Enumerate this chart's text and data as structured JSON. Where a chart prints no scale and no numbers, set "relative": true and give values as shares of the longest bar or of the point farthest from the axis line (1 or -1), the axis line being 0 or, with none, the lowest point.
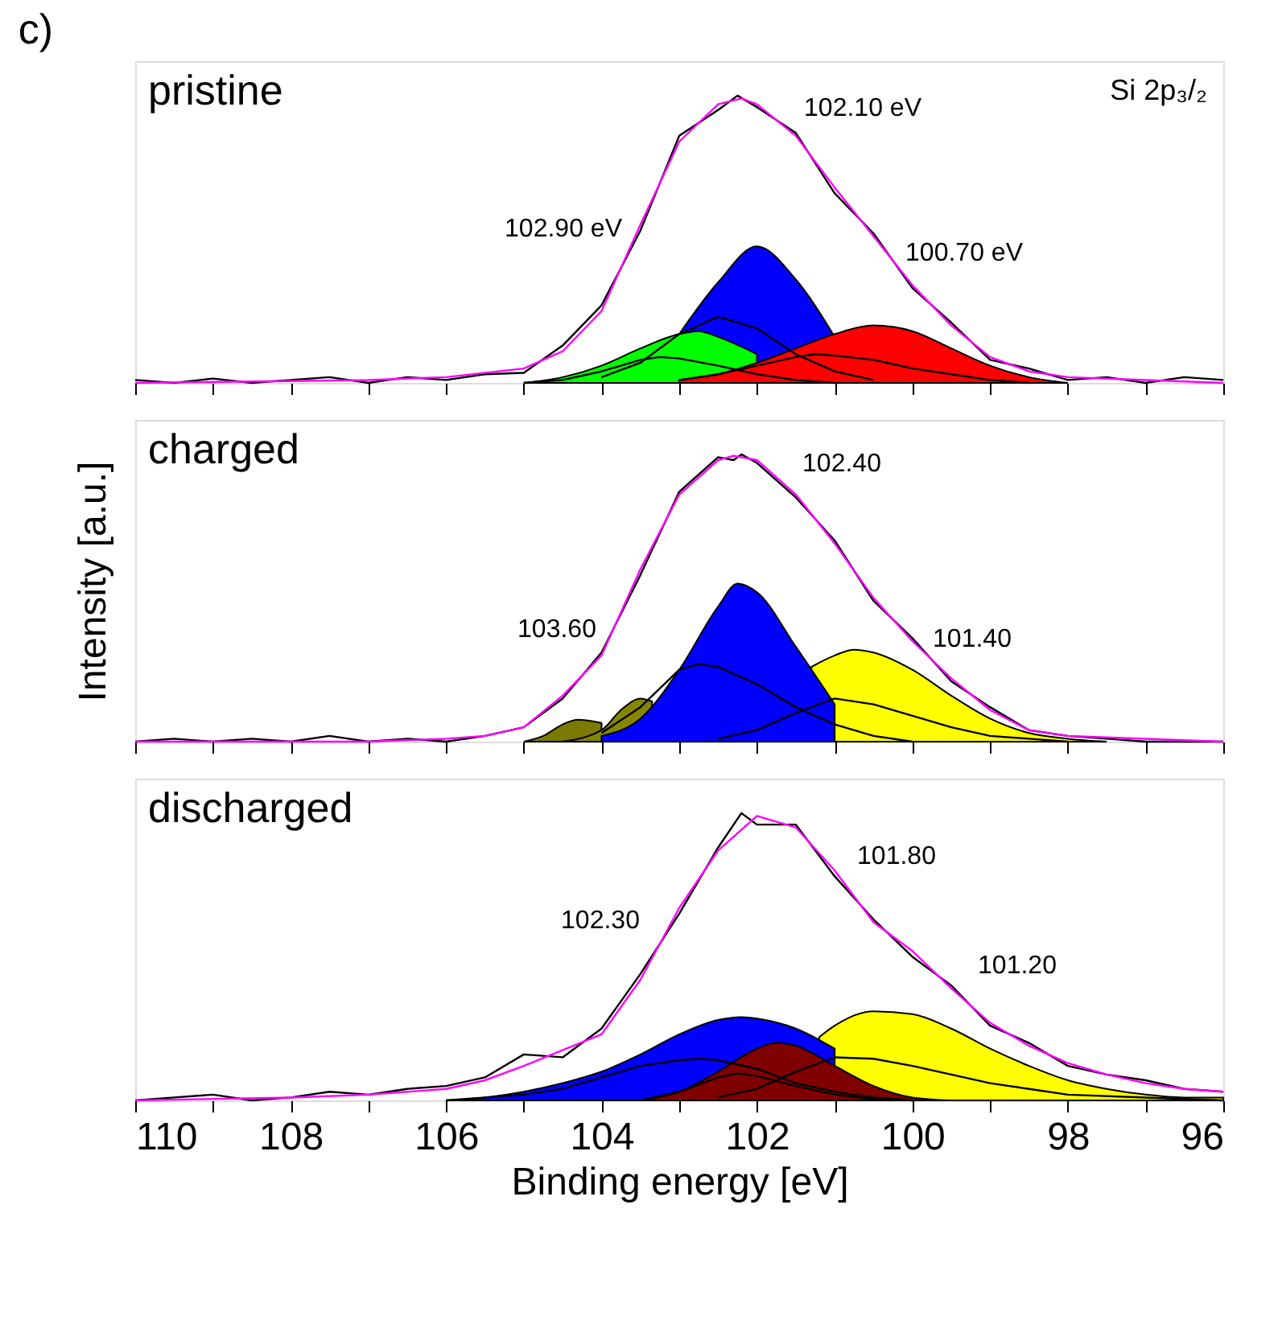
{
  "chart_data": [
    {
      "type": "area",
      "title": "c)",
      "relative": true,
      "xlim": [
        110,
        96
      ],
      "xticks": [
        110,
        {
          "value": 109,
          "label": null
        },
        108,
        {
          "value": 107,
          "label": null
        },
        106,
        {
          "value": 105,
          "label": null
        },
        104,
        {
          "value": 103,
          "label": null
        },
        102,
        {
          "value": 101,
          "label": null
        },
        100,
        {
          "value": 99,
          "label": null
        },
        98,
        {
          "value": 97,
          "label": null
        },
        96
      ],
      "tick_labels": false,
      "grid": false,
      "annotations": [
        "pristine",
        "Si 2p₃/₂",
        "102.10 eV",
        "102.90 eV",
        "100.70 eV"
      ],
      "series": [
        {
          "color": "#0000ff",
          "x": [
            103,
            102.5,
            102,
            101.5,
            101
          ],
          "values": [
            0.17,
            0.35,
            0.475,
            0.36,
            0.16
          ]
        },
        {
          "color": "#00ff00",
          "x": [
            105,
            104.5,
            104,
            103.5,
            103,
            102.75,
            102.5,
            102
          ],
          "values": [
            0,
            0.02,
            0.06,
            0.12,
            0.17,
            0.18,
            0.16,
            0.1
          ]
        },
        {
          "color": "#ff0000",
          "x": [
            103,
            102.5,
            102,
            101.5,
            101,
            100.5,
            100,
            99.5,
            99,
            98.5,
            98
          ],
          "values": [
            0.01,
            0.03,
            0.07,
            0.12,
            0.17,
            0.2,
            0.18,
            0.12,
            0.06,
            0.02,
            0
          ]
        },
        {
          "type": "line",
          "color": "#000000",
          "x": [
            104,
            103.5,
            103,
            102.5,
            102,
            101.5,
            101,
            100.5
          ],
          "values": [
            0.02,
            0.07,
            0.17,
            0.23,
            0.19,
            0.1,
            0.04,
            0.01
          ]
        },
        {
          "type": "line",
          "color": "#000000",
          "x": [
            105,
            104.5,
            104,
            103.5,
            103.25,
            103,
            102.5,
            102,
            101.5,
            101
          ],
          "values": [
            0,
            0.01,
            0.04,
            0.08,
            0.09,
            0.085,
            0.06,
            0.03,
            0.01,
            0
          ]
        },
        {
          "type": "line",
          "color": "#000000",
          "x": [
            103,
            102.5,
            102,
            101.5,
            101.25,
            101,
            100.5,
            100,
            99.5,
            99,
            98.5
          ],
          "values": [
            0.01,
            0.03,
            0.06,
            0.09,
            0.1,
            0.095,
            0.08,
            0.05,
            0.03,
            0.01,
            0
          ]
        },
        {
          "type": "line",
          "color": "#000000",
          "x": [
            110,
            109.5,
            109,
            108.5,
            108,
            107.5,
            107,
            106.5,
            106,
            105.5,
            105,
            104.5,
            104,
            103.5,
            103,
            102.5,
            102.25,
            102,
            101.5,
            101,
            100.5,
            100,
            99.5,
            99,
            98.5,
            98,
            97.5,
            97,
            96.5,
            96
          ],
          "values": [
            0.01,
            0,
            0.015,
            0,
            0.01,
            0.02,
            0,
            0.02,
            0.01,
            0.03,
            0.035,
            0.13,
            0.27,
            0.53,
            0.86,
            0.95,
            1.0,
            0.96,
            0.87,
            0.66,
            0.52,
            0.33,
            0.21,
            0.08,
            0.05,
            0.01,
            0.02,
            0,
            0.02,
            0.01
          ]
        },
        {
          "type": "line",
          "color": "#ff00ff",
          "x": [
            110,
            107,
            106,
            105,
            104.5,
            104,
            103.5,
            103,
            102.5,
            102.2,
            102,
            101.5,
            101,
            100.5,
            100,
            99.5,
            99,
            98.5,
            98,
            97,
            96
          ],
          "values": [
            0,
            0.01,
            0.02,
            0.05,
            0.11,
            0.25,
            0.55,
            0.84,
            0.97,
            0.99,
            0.97,
            0.86,
            0.68,
            0.51,
            0.34,
            0.2,
            0.09,
            0.04,
            0.02,
            0.01,
            0
          ]
        }
      ]
    },
    {
      "type": "area",
      "ylabel": "Intensity [a.u.]",
      "relative": true,
      "xlim": [
        110,
        96
      ],
      "xticks": [
        110,
        {
          "value": 109,
          "label": null
        },
        108,
        {
          "value": 107,
          "label": null
        },
        106,
        {
          "value": 105,
          "label": null
        },
        104,
        {
          "value": 103,
          "label": null
        },
        102,
        {
          "value": 101,
          "label": null
        },
        100,
        {
          "value": 99,
          "label": null
        },
        98,
        {
          "value": 97,
          "label": null
        },
        96
      ],
      "tick_labels": false,
      "grid": false,
      "annotations": [
        "charged",
        "102.40",
        "103.60",
        "101.40"
      ],
      "series": [
        {
          "color": "#7a7a00",
          "x": [
            105,
            104.75,
            104.5,
            104.3,
            104
          ],
          "values": [
            0,
            0.02,
            0.06,
            0.076,
            0.065
          ]
        },
        {
          "color": "#858500",
          "x": [
            104.5,
            104,
            103.75,
            103.5,
            103.35
          ],
          "values": [
            0,
            0.04,
            0.11,
            0.15,
            0.14
          ]
        },
        {
          "color": "#ffff00",
          "x": [
            101.3,
            101,
            100.75,
            100.5,
            100,
            99.5,
            99,
            98.5,
            98,
            97.5
          ],
          "values": [
            0.26,
            0.3,
            0.32,
            0.31,
            0.25,
            0.16,
            0.08,
            0.03,
            0.01,
            0
          ]
        },
        {
          "color": "#0000ff",
          "x": [
            104,
            103.5,
            103,
            102.5,
            102.25,
            102,
            101.5,
            101
          ],
          "values": [
            0.02,
            0.08,
            0.25,
            0.47,
            0.55,
            0.52,
            0.33,
            0.13
          ]
        },
        {
          "type": "line",
          "color": "#000000",
          "x": [
            104,
            103.5,
            103,
            102.75,
            102.5,
            102,
            101.5,
            101,
            100.5,
            100
          ],
          "values": [
            0.03,
            0.12,
            0.25,
            0.27,
            0.26,
            0.2,
            0.12,
            0.06,
            0.02,
            0
          ]
        },
        {
          "type": "line",
          "color": "#000000",
          "x": [
            102.5,
            102,
            101.5,
            101,
            100.5,
            100,
            99.5,
            99,
            98.5,
            98
          ],
          "values": [
            0.01,
            0.04,
            0.1,
            0.15,
            0.13,
            0.09,
            0.05,
            0.02,
            0.01,
            0
          ]
        },
        {
          "type": "line",
          "color": "#000000",
          "x": [
            110,
            109.5,
            109,
            108.5,
            108,
            107.5,
            107,
            106.5,
            106,
            105.5,
            105,
            104.5,
            104,
            103.5,
            103,
            102.5,
            102.3,
            102.2,
            102,
            101.5,
            101,
            100.5,
            100,
            99.5,
            99,
            98.5,
            98,
            97.5,
            97,
            96.5,
            96
          ],
          "values": [
            0,
            0.01,
            0,
            0.01,
            0,
            0.02,
            0,
            0.01,
            0,
            0.02,
            0.05,
            0.15,
            0.31,
            0.58,
            0.87,
            0.99,
            0.98,
            1.0,
            0.97,
            0.85,
            0.7,
            0.49,
            0.36,
            0.21,
            0.12,
            0.04,
            0.02,
            0.01,
            0,
            0,
            0
          ]
        },
        {
          "type": "line",
          "color": "#ff00ff",
          "x": [
            110,
            107,
            106,
            105.5,
            105,
            104.5,
            104,
            103.5,
            103,
            102.5,
            102.3,
            102,
            101.5,
            101,
            100.5,
            100,
            99.5,
            99,
            98.5,
            98,
            97,
            96
          ],
          "values": [
            0,
            0,
            0.01,
            0.02,
            0.05,
            0.16,
            0.3,
            0.6,
            0.86,
            0.98,
            0.995,
            0.98,
            0.86,
            0.69,
            0.5,
            0.35,
            0.22,
            0.11,
            0.04,
            0.02,
            0.01,
            0
          ]
        }
      ]
    },
    {
      "type": "area",
      "xlabel": "Binding energy [eV]",
      "relative": true,
      "xlim": [
        110,
        96
      ],
      "xticks": [
        110,
        {
          "value": 109,
          "label": null
        },
        108,
        {
          "value": 107,
          "label": null
        },
        106,
        {
          "value": 105,
          "label": null
        },
        104,
        {
          "value": 103,
          "label": null
        },
        102,
        {
          "value": 101,
          "label": null
        },
        100,
        {
          "value": 99,
          "label": null
        },
        98,
        {
          "value": 97,
          "label": null
        },
        96
      ],
      "tick_labels": "x",
      "grid": false,
      "annotations": [
        "discharged",
        "101.80",
        "102.30",
        "101.20"
      ],
      "series": [
        {
          "color": "#ffff00",
          "x": [
            101.2,
            101,
            100.5,
            100,
            99.5,
            99,
            98.5,
            98,
            97.5,
            97,
            96.5,
            96
          ],
          "values": [
            0.22,
            0.26,
            0.31,
            0.3,
            0.25,
            0.18,
            0.12,
            0.07,
            0.04,
            0.02,
            0.01,
            0.01
          ]
        },
        {
          "color": "#0000ff",
          "x": [
            106,
            105.5,
            105,
            104.5,
            104,
            103.5,
            103,
            102.5,
            102.2,
            102,
            101.5,
            101
          ],
          "values": [
            0,
            0.01,
            0.03,
            0.06,
            0.1,
            0.16,
            0.23,
            0.28,
            0.29,
            0.285,
            0.25,
            0.18
          ]
        },
        {
          "color": "#800000",
          "x": [
            103.5,
            103,
            102.5,
            102,
            101.75,
            101.5,
            101,
            100.5,
            100,
            99.5
          ],
          "values": [
            0,
            0.03,
            0.1,
            0.18,
            0.2,
            0.19,
            0.12,
            0.05,
            0.01,
            0
          ]
        },
        {
          "type": "line",
          "color": "#000000",
          "x": [
            106,
            105.5,
            105,
            104.5,
            104,
            103.5,
            103,
            102.75,
            102.5,
            102,
            101.5,
            101,
            100.5,
            100
          ],
          "values": [
            0,
            0.01,
            0.02,
            0.04,
            0.08,
            0.12,
            0.14,
            0.145,
            0.14,
            0.11,
            0.06,
            0.03,
            0.01,
            0
          ]
        },
        {
          "type": "line",
          "color": "#000000",
          "x": [
            103.5,
            103,
            102.5,
            102.25,
            102,
            101.5,
            101,
            100.5,
            100
          ],
          "values": [
            0,
            0.03,
            0.08,
            0.094,
            0.085,
            0.05,
            0.02,
            0.005,
            0
          ]
        },
        {
          "type": "line",
          "color": "#000000",
          "x": [
            102.5,
            102,
            101.5,
            101,
            100.5,
            100,
            99.5,
            99,
            98.5,
            98,
            97,
            96
          ],
          "values": [
            0.01,
            0.04,
            0.1,
            0.15,
            0.145,
            0.12,
            0.09,
            0.06,
            0.04,
            0.02,
            0.01,
            0
          ]
        },
        {
          "type": "line",
          "color": "#000000",
          "x": [
            110,
            109.5,
            109,
            108.5,
            108,
            107.5,
            107,
            106.5,
            106,
            105.5,
            105,
            104.5,
            104,
            103.5,
            103,
            102.5,
            102.2,
            102,
            101.5,
            101,
            100.5,
            100,
            99.5,
            99,
            98.5,
            98,
            97.5,
            97,
            96.5,
            96
          ],
          "values": [
            0,
            0.01,
            0.02,
            0,
            0.01,
            0.03,
            0.02,
            0.04,
            0.05,
            0.08,
            0.16,
            0.15,
            0.25,
            0.44,
            0.65,
            0.88,
            1.0,
            0.96,
            0.96,
            0.78,
            0.63,
            0.5,
            0.4,
            0.26,
            0.2,
            0.12,
            0.09,
            0.07,
            0.04,
            0.03
          ]
        },
        {
          "type": "line",
          "color": "#ff00ff",
          "x": [
            110,
            108,
            107,
            106,
            105.5,
            105,
            104,
            103.5,
            103,
            102.5,
            102,
            101.5,
            101,
            100.5,
            100,
            99.5,
            99,
            98.5,
            98,
            97.5,
            97,
            96.5,
            96
          ],
          "values": [
            0,
            0.01,
            0.02,
            0.04,
            0.07,
            0.12,
            0.23,
            0.42,
            0.67,
            0.87,
            0.99,
            0.95,
            0.8,
            0.62,
            0.52,
            0.39,
            0.27,
            0.19,
            0.13,
            0.09,
            0.06,
            0.04,
            0.03
          ]
        }
      ]
    }
  ]
}
